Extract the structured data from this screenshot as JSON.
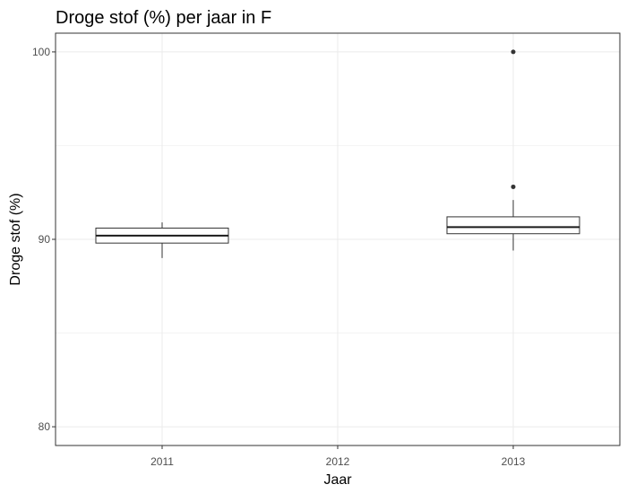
{
  "chart_data": {
    "type": "boxplot",
    "title": "Droge stof (%)  per jaar in F",
    "xlabel": "Jaar",
    "ylabel": "Droge stof (%)",
    "categories": [
      "2011",
      "2012",
      "2013"
    ],
    "ylim": [
      79.0,
      101.0
    ],
    "yticks": [
      80,
      90,
      100
    ],
    "ytick_labels": [
      "80",
      "90",
      "100"
    ],
    "y_minor_gridlines": [
      85,
      95
    ],
    "grid": true,
    "legend": "none",
    "boxes": [
      {
        "category": "2011",
        "whisker_low": 89.0,
        "q1": 89.8,
        "median": 90.2,
        "q3": 90.6,
        "whisker_high": 90.9,
        "outliers": []
      },
      {
        "category": "2013",
        "whisker_low": 89.4,
        "q1": 90.3,
        "median": 90.65,
        "q3": 91.2,
        "whisker_high": 92.1,
        "outliers": [
          92.8,
          100.0
        ]
      }
    ]
  }
}
